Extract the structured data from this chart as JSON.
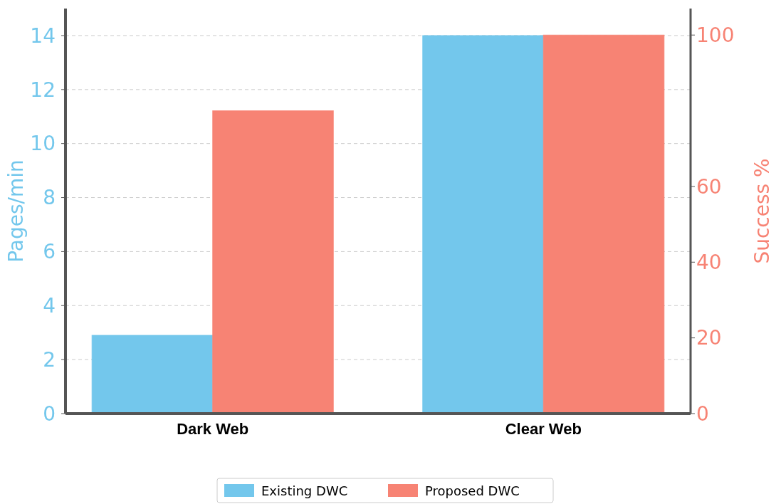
{
  "chart_data": {
    "type": "bar",
    "categories": [
      "Dark Web",
      "Clear Web"
    ],
    "ylabel": "Pages/min",
    "y2label": "Success %",
    "series": [
      {
        "name": "Existing DWC",
        "color": "#73c7ec",
        "values": [
          2.9,
          14
        ]
      },
      {
        "name": "Proposed DWC",
        "color": "#f78374",
        "values": [
          80,
          100
        ],
        "axis": "y2"
      }
    ],
    "ylim": [
      0,
      15
    ],
    "yticks": [
      0,
      2,
      4,
      6,
      8,
      10,
      12,
      14
    ],
    "y2lim": [
      0,
      107
    ],
    "y2ticks": [
      0,
      20,
      40,
      60,
      100
    ],
    "grid": "y",
    "legend": "bottom"
  }
}
